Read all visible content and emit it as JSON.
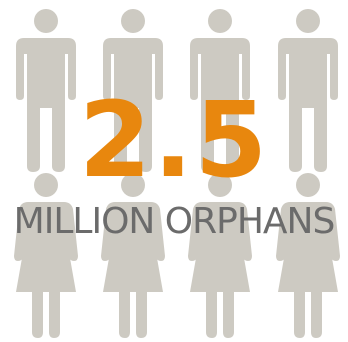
{
  "stat": {
    "value": "2.5",
    "caption": "MILLION ORPHANS"
  },
  "icons": {
    "top_row": [
      "male-figure-icon",
      "male-figure-icon",
      "male-figure-icon",
      "male-figure-icon"
    ],
    "bottom_row": [
      "female-figure-icon",
      "female-figure-icon",
      "female-figure-icon",
      "female-figure-icon"
    ]
  },
  "colors": {
    "figure": "#cdcac2",
    "number": "#e8870e",
    "caption": "#6b6b6b",
    "background": "#ffffff"
  }
}
